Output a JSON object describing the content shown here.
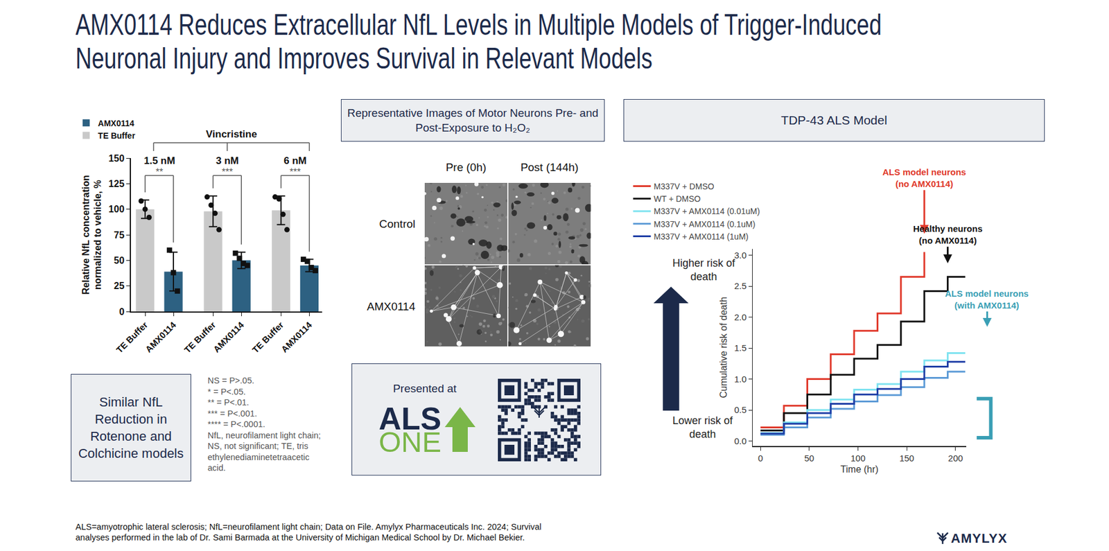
{
  "slide": {
    "title": [
      "AMX0114 Reduces Extracellular NfL Levels in Multiple Models of Trigger-Induced",
      "Neuronal Injury and Improves Survival in Relevant Models"
    ],
    "footnote": [
      "ALS=amyotrophic lateral sclerosis; NfL=neurofilament light chain; Data on File. Amylyx Pharmaceuticals Inc. 2024; Survival",
      "analyses performed in the lab of Dr. Sami Barmada at the University of Michigan Medical School by Dr. Michael Bekier."
    ],
    "logo": "AMYLYX"
  },
  "side_box": [
    "Similar NfL",
    "Reduction in",
    "Rotenone and",
    "Colchicine models"
  ],
  "stat_notes": [
    "NS = P>.05.",
    "* = P<.05.",
    "** = P<.01.",
    "*** = P<.001.",
    "**** = P<.0001.",
    "NfL, neurofilament light chain;",
    "NS, not significant; TE, tris",
    "ethylenediaminetetraacetic",
    "acid."
  ],
  "images_panel": {
    "title": [
      "Representative Images of Motor Neurons Pre- and",
      "Post-Exposure to H₂O₂"
    ],
    "columns": [
      "Pre (0h)",
      "Post (144h)"
    ],
    "rows": [
      "Control",
      "AMX0114"
    ]
  },
  "presented_at": {
    "text": "Presented at",
    "logo": [
      "ALS",
      "ONE"
    ]
  },
  "chart_data": [
    {
      "type": "bar",
      "group_label": "Vincristine",
      "categories": [
        "1.5 nM",
        "3 nM",
        "6 nM"
      ],
      "series": [
        {
          "name": "TE Buffer",
          "color": "#c9c9c9",
          "marker": "circle",
          "values": [
            100,
            98,
            99
          ],
          "errors": [
            9,
            15,
            14
          ],
          "points": [
            [
              108,
              100,
              92
            ],
            [
              112,
              104,
              96,
              80
            ],
            [
              112,
              110,
              95,
              80
            ]
          ]
        },
        {
          "name": "AMX0114",
          "color": "#2d6182",
          "marker": "square",
          "values": [
            39,
            50,
            45
          ],
          "errors": [
            19,
            8,
            6
          ],
          "points": [
            [
              60,
              38,
              20
            ],
            [
              57,
              52,
              47,
              45
            ],
            [
              51,
              49,
              43,
              40
            ]
          ]
        }
      ],
      "significance": [
        "**",
        "***",
        "***"
      ],
      "y_label": [
        "Relative NfL concentration",
        "normalized to vehicle, %"
      ],
      "ylim": [
        0,
        150
      ],
      "yticks": [
        0,
        25,
        50,
        75,
        100,
        125,
        150
      ],
      "legend": "top-left",
      "grid": false
    },
    {
      "type": "line",
      "title": "TDP-43 ALS Model",
      "line_style": "step",
      "x_label": "Time (hr)",
      "y_label": "Cumulative risk of death",
      "x": [
        0,
        24,
        48,
        72,
        96,
        120,
        144,
        168,
        192,
        210
      ],
      "xlim": [
        -8,
        211
      ],
      "xticks": [
        0,
        50,
        100,
        150,
        200
      ],
      "ylim": [
        -0.08,
        3.1
      ],
      "yticks": [
        {
          "value": 0,
          "label": "0.0"
        },
        0.5,
        {
          "value": 1,
          "label": "1.0"
        },
        1.5,
        {
          "value": 2,
          "label": "2.0"
        },
        2.5,
        {
          "value": 3,
          "label": "3.0"
        }
      ],
      "legend": "top-left",
      "grid": false,
      "series": [
        {
          "name": "M337V + DMSO",
          "color": "#e0392b",
          "values": [
            0.22,
            0.57,
            1.0,
            1.4,
            1.78,
            2.06,
            2.65,
            3.05,
            null,
            null
          ]
        },
        {
          "name": "WT + DMSO",
          "color": "#111111",
          "values": [
            0.17,
            0.45,
            0.75,
            1.07,
            1.33,
            1.55,
            1.93,
            2.42,
            2.65,
            2.65
          ]
        },
        {
          "name": "M337V + AMX0114 (0.01uM)",
          "color": "#7fe3f0",
          "values": [
            0.13,
            0.3,
            0.5,
            0.67,
            0.83,
            0.92,
            1.12,
            1.3,
            1.42,
            1.42
          ]
        },
        {
          "name": "M337V + AMX0114 (0.1uM)",
          "color": "#5b9ad6",
          "values": [
            0.1,
            0.22,
            0.38,
            0.52,
            0.64,
            0.74,
            0.87,
            1.02,
            1.12,
            1.12
          ]
        },
        {
          "name": "M337V + AMX0114 (1uM)",
          "color": "#1f3ea6",
          "values": [
            0.12,
            0.28,
            0.45,
            0.6,
            0.75,
            0.84,
            1.0,
            1.2,
            1.28,
            1.28
          ]
        }
      ],
      "annotations": [
        {
          "text": [
            "ALS model neurons",
            "(no AMX0114)"
          ],
          "color": "#e0392b"
        },
        {
          "text": [
            "Healthy neurons",
            "(no AMX0114)"
          ],
          "color": "#111111"
        },
        {
          "text": [
            "ALS model neurons",
            "(with AMX0114)"
          ],
          "color": "#3a9fb5"
        }
      ],
      "risk_labels": {
        "higher": [
          "Higher risk of",
          "death"
        ],
        "lower": [
          "Lower risk of",
          "death"
        ]
      }
    }
  ]
}
